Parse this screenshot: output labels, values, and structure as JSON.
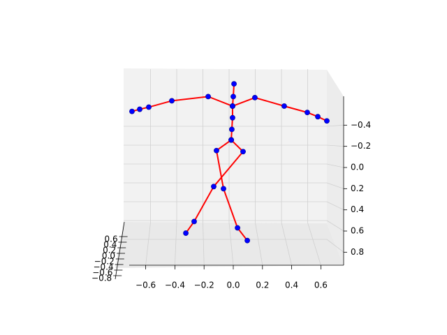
{
  "chart_data": {
    "type": "skeleton3d",
    "line_color": "#ff0000",
    "marker_color": "#0000ff",
    "grid": true,
    "xlim": [
      -0.75,
      0.75
    ],
    "xticks": [
      {
        "value": -0.6,
        "label": "−0.6"
      },
      {
        "value": -0.4,
        "label": "−0.4"
      },
      {
        "value": -0.2,
        "label": "−0.2"
      },
      {
        "value": 0,
        "label": "0.0"
      },
      0.2,
      0.4,
      0.6
    ],
    "ylim": [
      -0.66,
      0.92
    ],
    "yticks": [
      {
        "value": -0.4,
        "label": "−0.4"
      },
      {
        "value": -0.2,
        "label": "−0.2"
      },
      {
        "value": 0,
        "label": "0.0"
      },
      0.2,
      0.4,
      0.6,
      0.8
    ],
    "zlim": [
      -0.8,
      0.6
    ],
    "zticks": [
      0.6,
      0.4,
      0.2,
      {
        "value": 0,
        "label": "0.0"
      },
      {
        "value": -0.2,
        "label": "−0.2"
      },
      {
        "value": -0.4,
        "label": "−0.4"
      },
      {
        "value": -0.6,
        "label": "−0.6"
      },
      {
        "value": -0.8,
        "label": "−0.8"
      }
    ],
    "series": [
      {
        "x": [
          0.005,
          0,
          -0.005,
          -0.005,
          -0.01,
          -0.014
        ],
        "values": [
          -0.79,
          -0.67,
          -0.58,
          -0.47,
          -0.36,
          -0.26
        ]
      },
      {
        "x": [
          -0.005,
          0.148,
          0.349,
          0.507,
          0.579,
          0.641
        ],
        "values": [
          -0.58,
          -0.66,
          -0.58,
          -0.52,
          -0.48,
          -0.44
        ]
      },
      {
        "x": [
          -0.005,
          -0.172,
          -0.421,
          -0.579,
          -0.641,
          -0.694
        ],
        "values": [
          -0.58,
          -0.67,
          -0.63,
          -0.57,
          -0.55,
          -0.53
        ]
      },
      {
        "x": [
          -0.014,
          -0.115,
          -0.067,
          0.029,
          0.096
        ],
        "values": [
          -0.26,
          -0.16,
          0.2,
          0.57,
          0.69
        ]
      },
      {
        "x": [
          -0.014,
          0.067,
          -0.134,
          -0.268,
          -0.325
        ],
        "values": [
          -0.26,
          -0.15,
          0.18,
          0.51,
          0.62
        ]
      }
    ]
  }
}
